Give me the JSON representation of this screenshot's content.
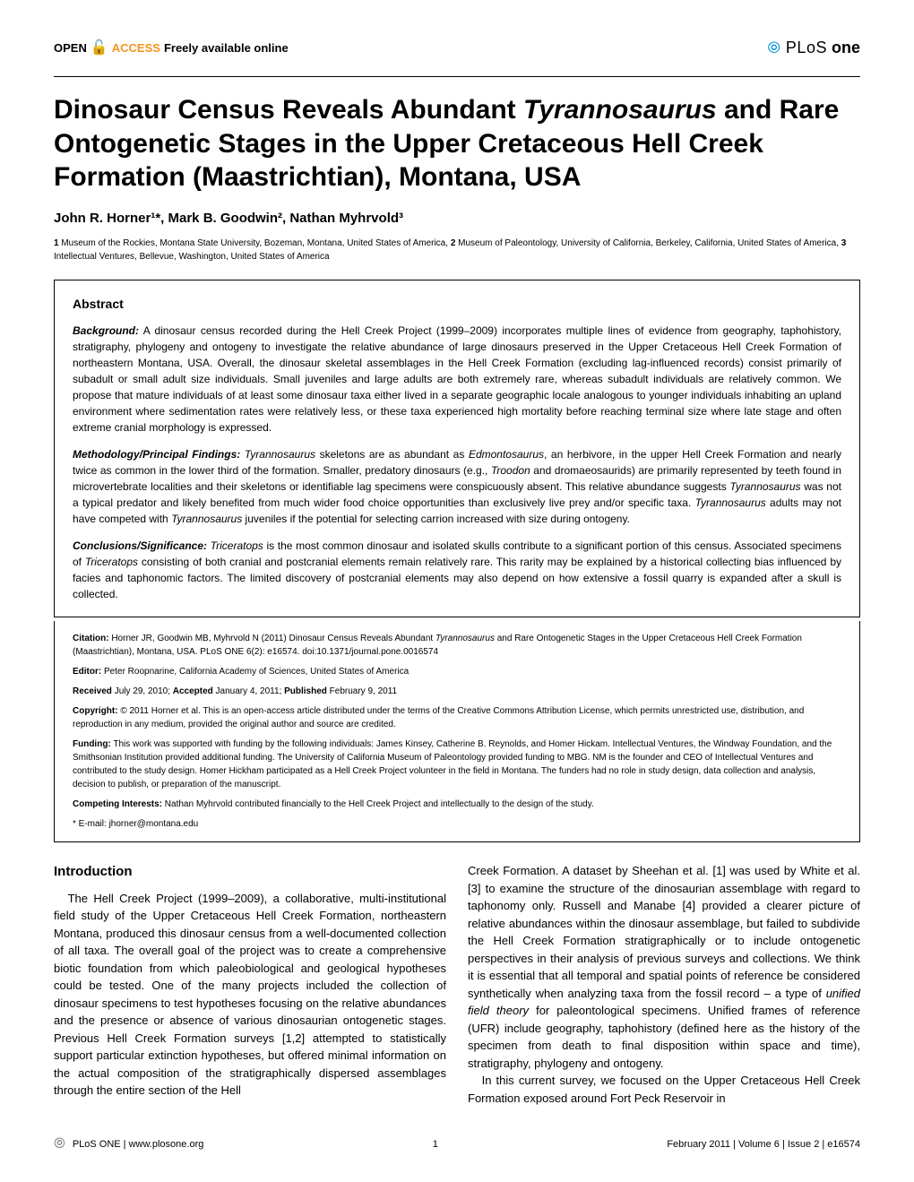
{
  "header": {
    "open": "OPEN",
    "access": "ACCESS",
    "freely": "Freely available online",
    "journal_plos": "PLoS",
    "journal_one": "one"
  },
  "title": "Dinosaur Census Reveals Abundant Tyrannosaurus and Rare Ontogenetic Stages in the Upper Cretaceous Hell Creek Formation (Maastrichtian), Montana, USA",
  "authors": "John R. Horner¹*, Mark B. Goodwin², Nathan Myhrvold³",
  "affiliations": "1 Museum of the Rockies, Montana State University, Bozeman, Montana, United States of America, 2 Museum of Paleontology, University of California, Berkeley, California, United States of America, 3 Intellectual Ventures, Bellevue, Washington, United States of America",
  "abstract": {
    "heading": "Abstract",
    "background_label": "Background:",
    "background": "A dinosaur census recorded during the Hell Creek Project (1999–2009) incorporates multiple lines of evidence from geography, taphohistory, stratigraphy, phylogeny and ontogeny to investigate the relative abundance of large dinosaurs preserved in the Upper Cretaceous Hell Creek Formation of northeastern Montana, USA. Overall, the dinosaur skeletal assemblages in the Hell Creek Formation (excluding lag-influenced records) consist primarily of subadult or small adult size individuals. Small juveniles and large adults are both extremely rare, whereas subadult individuals are relatively common. We propose that mature individuals of at least some dinosaur taxa either lived in a separate geographic locale analogous to younger individuals inhabiting an upland environment where sedimentation rates were relatively less, or these taxa experienced high mortality before reaching terminal size where late stage and often extreme cranial morphology is expressed.",
    "methods_label": "Methodology/Principal Findings:",
    "methods": "Tyrannosaurus skeletons are as abundant as Edmontosaurus, an herbivore, in the upper Hell Creek Formation and nearly twice as common in the lower third of the formation. Smaller, predatory dinosaurs (e.g., Troodon and dromaeosaurids) are primarily represented by teeth found in microvertebrate localities and their skeletons or identifiable lag specimens were conspicuously absent. This relative abundance suggests Tyrannosaurus was not a typical predator and likely benefited from much wider food choice opportunities than exclusively live prey and/or specific taxa. Tyrannosaurus adults may not have competed with Tyrannosaurus juveniles if the potential for selecting carrion increased with size during ontogeny.",
    "conclusions_label": "Conclusions/Significance:",
    "conclusions": "Triceratops is the most common dinosaur and isolated skulls contribute to a significant portion of this census. Associated specimens of Triceratops consisting of both cranial and postcranial elements remain relatively rare. This rarity may be explained by a historical collecting bias influenced by facies and taphonomic factors. The limited discovery of postcranial elements may also depend on how extensive a fossil quarry is expanded after a skull is collected."
  },
  "meta": {
    "citation_label": "Citation:",
    "citation": "Horner JR, Goodwin MB, Myhrvold N (2011) Dinosaur Census Reveals Abundant Tyrannosaurus and Rare Ontogenetic Stages in the Upper Cretaceous Hell Creek Formation (Maastrichtian), Montana, USA. PLoS ONE 6(2): e16574. doi:10.1371/journal.pone.0016574",
    "editor_label": "Editor:",
    "editor": "Peter Roopnarine, California Academy of Sciences, United States of America",
    "received_label": "Received",
    "received": "July 29, 2010;",
    "accepted_label": "Accepted",
    "accepted": "January 4, 2011;",
    "published_label": "Published",
    "published": "February 9, 2011",
    "copyright_label": "Copyright:",
    "copyright": "© 2011 Horner et al. This is an open-access article distributed under the terms of the Creative Commons Attribution License, which permits unrestricted use, distribution, and reproduction in any medium, provided the original author and source are credited.",
    "funding_label": "Funding:",
    "funding": "This work was supported with funding by the following individuals: James Kinsey, Catherine B. Reynolds, and Homer Hickam. Intellectual Ventures, the Windway Foundation, and the Smithsonian Institution provided additional funding. The University of California Museum of Paleontology provided funding to MBG. NM is the founder and CEO of Intellectual Ventures and contributed to the study design. Homer Hickham participated as a Hell Creek Project volunteer in the field in Montana. The funders had no role in study design, data collection and analysis, decision to publish, or preparation of the manuscript.",
    "competing_label": "Competing Interests:",
    "competing": "Nathan Myhrvold contributed financially to the Hell Creek Project and intellectually to the design of the study.",
    "email_label": "* E-mail:",
    "email": "jhorner@montana.edu"
  },
  "body": {
    "intro_heading": "Introduction",
    "col1_p1": "The Hell Creek Project (1999–2009), a collaborative, multi-institutional field study of the Upper Cretaceous Hell Creek Formation, northeastern Montana, produced this dinosaur census from a well-documented collection of all taxa. The overall goal of the project was to create a comprehensive biotic foundation from which paleobiological and geological hypotheses could be tested. One of the many projects included the collection of dinosaur specimens to test hypotheses focusing on the relative abundances and the presence or absence of various dinosaurian ontogenetic stages. Previous Hell Creek Formation surveys [1,2] attempted to statistically support particular extinction hypotheses, but offered minimal information on the actual composition of the stratigraphically dispersed assemblages through the entire section of the Hell",
    "col2_p1": "Creek Formation. A dataset by Sheehan et al. [1] was used by White et al. [3] to examine the structure of the dinosaurian assemblage with regard to taphonomy only. Russell and Manabe [4] provided a clearer picture of relative abundances within the dinosaur assemblage, but failed to subdivide the Hell Creek Formation stratigraphically or to include ontogenetic perspectives in their analysis of previous surveys and collections. We think it is essential that all temporal and spatial points of reference be considered synthetically when analyzing taxa from the fossil record – a type of unified field theory for paleontological specimens. Unified frames of reference (UFR) include geography, taphohistory (defined here as the history of the specimen from death to final disposition within space and time), stratigraphy, phylogeny and ontogeny.",
    "col2_p2": "In this current survey, we focused on the Upper Cretaceous Hell Creek Formation exposed around Fort Peck Reservoir in"
  },
  "footer": {
    "site": "PLoS ONE | www.plosone.org",
    "page": "1",
    "issue": "February 2011 | Volume 6 | Issue 2 | e16574"
  },
  "colors": {
    "orange": "#f7941e",
    "blue": "#0096d6",
    "black": "#000000",
    "gray": "#888888"
  }
}
